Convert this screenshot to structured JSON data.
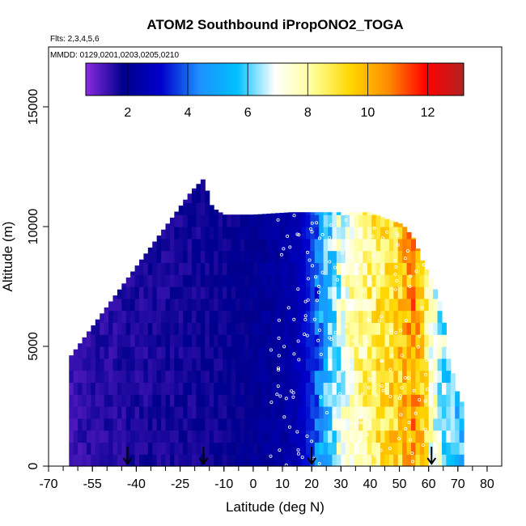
{
  "chart_data": {
    "type": "heatmap",
    "title": "ATOM2 Southbound iPropONO2_TOGA",
    "flights_note": "Flts: 2,3,4,5,6",
    "dates_note": "MMDD: 0129,0201,0203,0205,0210",
    "xlabel": "Latitude (deg N)",
    "ylabel": "Altitude (m)",
    "xlim": [
      -70,
      85
    ],
    "ylim": [
      0,
      17500
    ],
    "xticks": [
      -70,
      -55,
      -40,
      -25,
      -10,
      0,
      10,
      20,
      30,
      40,
      50,
      60,
      70,
      80
    ],
    "yticks": [
      0,
      5000,
      10000,
      15000
    ],
    "colorbar": {
      "min": 0.6,
      "max": 13.2,
      "ticks": [
        2,
        4,
        6,
        8,
        10,
        12
      ],
      "colors": [
        "#8a2be2",
        "#00008b",
        "#0000cd",
        "#1e90ff",
        "#00bfff",
        "#ffffff",
        "#ffff99",
        "#ffd700",
        "#ff8c00",
        "#ff0000",
        "#b22222"
      ]
    },
    "arrows_lat": [
      -43,
      -17,
      20,
      61
    ],
    "envelope": [
      {
        "lat": -63,
        "top": 4500
      },
      {
        "lat": -60,
        "top": 5000
      },
      {
        "lat": -57,
        "top": 5500
      },
      {
        "lat": -54,
        "top": 6000
      },
      {
        "lat": -51,
        "top": 6500
      },
      {
        "lat": -48,
        "top": 7000
      },
      {
        "lat": -45,
        "top": 7500
      },
      {
        "lat": -42,
        "top": 8000
      },
      {
        "lat": -39,
        "top": 8500
      },
      {
        "lat": -36,
        "top": 9000
      },
      {
        "lat": -33,
        "top": 9500
      },
      {
        "lat": -30,
        "top": 10000
      },
      {
        "lat": -27,
        "top": 10500
      },
      {
        "lat": -24,
        "top": 11000
      },
      {
        "lat": -21,
        "top": 11500
      },
      {
        "lat": -17,
        "top": 12000
      },
      {
        "lat": -14,
        "top": 10800
      },
      {
        "lat": -10,
        "top": 10500
      },
      {
        "lat": 0,
        "top": 10500
      },
      {
        "lat": 13,
        "top": 10600
      },
      {
        "lat": 25,
        "top": 10600
      },
      {
        "lat": 40,
        "top": 10600
      },
      {
        "lat": 46,
        "top": 10300
      },
      {
        "lat": 51,
        "top": 10100
      },
      {
        "lat": 55,
        "top": 9500
      },
      {
        "lat": 58,
        "top": 8500
      },
      {
        "lat": 61,
        "top": 7800
      },
      {
        "lat": 64,
        "top": 6800
      },
      {
        "lat": 66,
        "top": 5500
      },
      {
        "lat": 68,
        "top": 4000
      },
      {
        "lat": 70,
        "top": 3000
      },
      {
        "lat": 72,
        "top": 2500
      }
    ],
    "vertical_profile_lat": [
      {
        "lat": -63,
        "value": 1.3
      },
      {
        "lat": -55,
        "value": 1.5
      },
      {
        "lat": -40,
        "value": 1.6
      },
      {
        "lat": -25,
        "value": 1.7
      },
      {
        "lat": -10,
        "value": 1.8
      },
      {
        "lat": 0,
        "value": 2.0
      },
      {
        "lat": 10,
        "value": 2.3
      },
      {
        "lat": 15,
        "value": 2.6
      },
      {
        "lat": 20,
        "value": 3.5
      },
      {
        "lat": 25,
        "value": 5.5
      },
      {
        "lat": 30,
        "value": 7.0
      },
      {
        "lat": 35,
        "value": 7.8
      },
      {
        "lat": 40,
        "value": 8.5
      },
      {
        "lat": 45,
        "value": 9.0
      },
      {
        "lat": 50,
        "value": 9.5
      },
      {
        "lat": 55,
        "value": 10.5
      },
      {
        "lat": 58,
        "value": 9.5
      },
      {
        "lat": 61,
        "value": 7.5
      },
      {
        "lat": 65,
        "value": 6.5
      },
      {
        "lat": 70,
        "value": 5.5
      }
    ]
  }
}
